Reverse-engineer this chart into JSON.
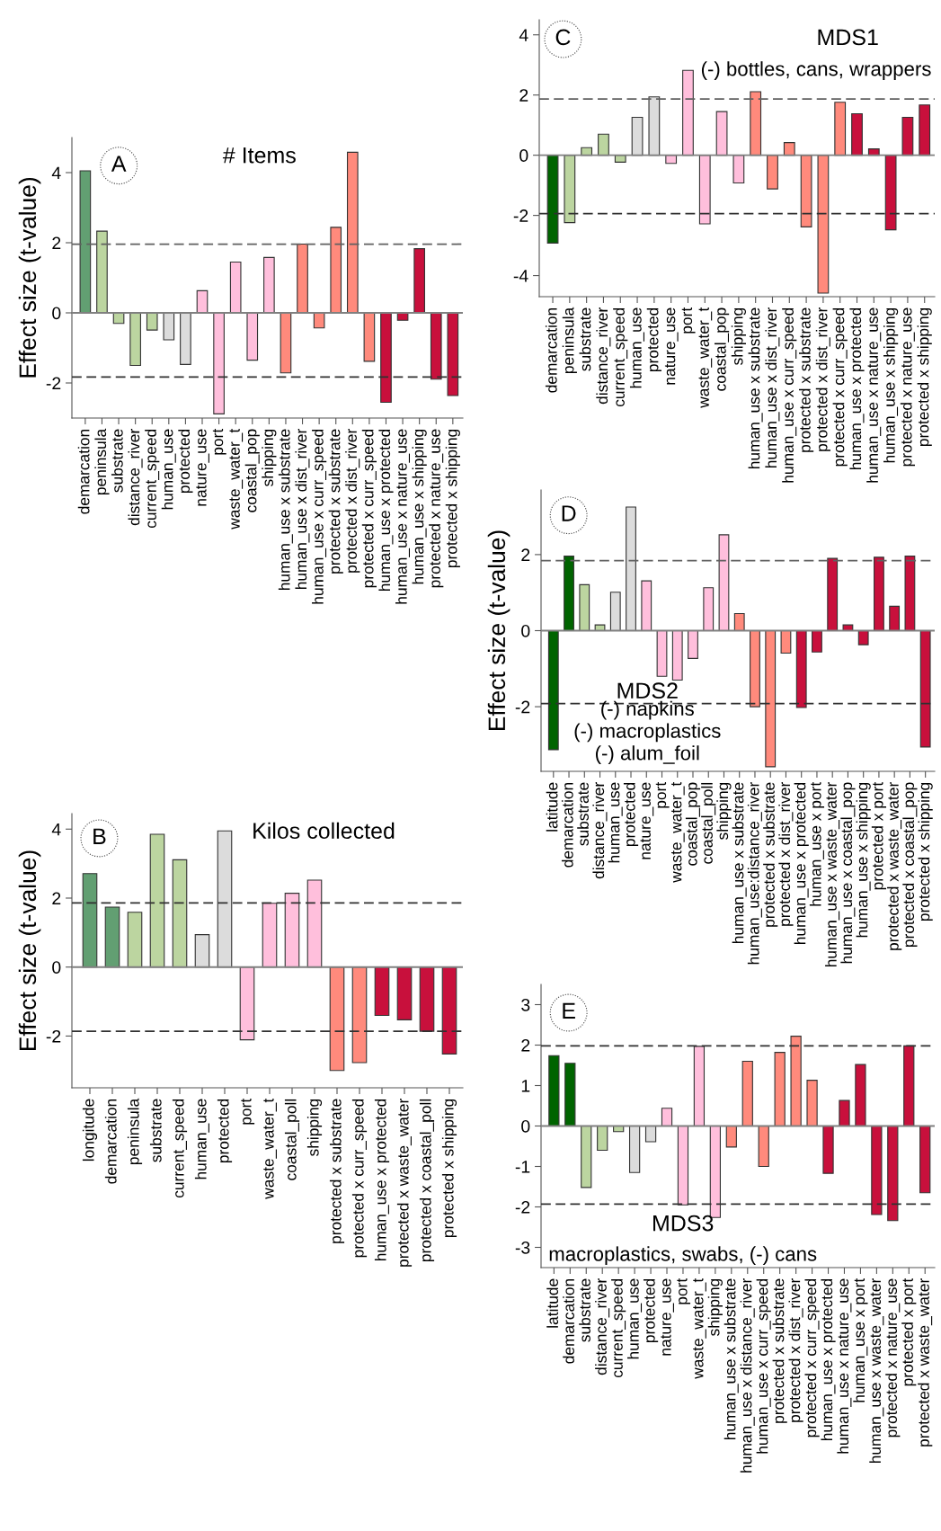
{
  "chart_data": [
    {
      "type": "bar",
      "title": "# Items",
      "ylabel": "Effect size (t-value)",
      "annotations": [
        "A"
      ],
      "categories": [
        "demarcation",
        "peninsula",
        "substrate",
        "distance_river",
        "current_speed",
        "human_use",
        "protected",
        "nature_use",
        "port",
        "waste_water_t",
        "coastal_pop",
        "shipping",
        "human_use x substrate",
        "human_use x dist_river",
        "human_use x curr_speed",
        "protected x substrate",
        "protected x dist_river",
        "protected x curr_speed",
        "human_use x protected",
        "human_use x nature_use",
        "human_use x shipping",
        "protected x nature_use",
        "protected x shipping"
      ],
      "values": [
        4.05,
        2.33,
        -0.3,
        -1.5,
        -0.49,
        -0.77,
        -1.47,
        0.63,
        -2.88,
        1.45,
        -1.35,
        1.58,
        -1.71,
        1.96,
        -0.43,
        2.44,
        4.58,
        -1.38,
        -2.55,
        -0.21,
        1.83,
        -1.89,
        -2.36
      ],
      "colors": [
        "#629f72",
        "#bcd5a0",
        "#bcd5a0",
        "#bcd5a0",
        "#bcd5a0",
        "#dcdcdc",
        "#dcdcdc",
        "#ffbfdc",
        "#ffbfdc",
        "#ffbfdc",
        "#ffbfdc",
        "#ffbfdc",
        "#ff8a7c",
        "#ff8a7c",
        "#ff8a7c",
        "#ff8a7c",
        "#ff8a7c",
        "#ff8a7c",
        "#c8103c",
        "#c8103c",
        "#c8103c",
        "#c8103c",
        "#c8103c"
      ],
      "ylim": [
        -3,
        5
      ],
      "yticks": [
        -2,
        0,
        2,
        4
      ],
      "ref_lines": [
        {
          "axis": "y",
          "value": 0,
          "color": "#808080",
          "line_style": "solid"
        },
        {
          "axis": "y",
          "value": 1.96,
          "color": "#606060",
          "line_style": "dashed"
        },
        {
          "axis": "y",
          "value": -1.83,
          "color": "#303030",
          "line_style": "dashed"
        }
      ]
    },
    {
      "type": "bar",
      "title": "MDS1",
      "subtitle": "(-) bottles, cans, wrappers",
      "annotations": [
        "C"
      ],
      "categories": [
        "demarcation",
        "peninsula",
        "substrate",
        "distance_river",
        "current_speed",
        "human_use",
        "protected",
        "nature_use",
        "port",
        "waste_water_t",
        "coastal_pop",
        "shipping",
        "human_use x substrate",
        "human_use x dist_river",
        "human_use x curr_speed",
        "protected x substrate",
        "protected x dist_river",
        "protected x curr_speed",
        "human_use x protected",
        "human_use x nature_use",
        "human_use x shipping",
        "protected x nature_use",
        "protected x shipping"
      ],
      "values": [
        -2.92,
        -2.24,
        0.25,
        0.7,
        -0.23,
        1.26,
        1.94,
        -0.27,
        2.82,
        -2.28,
        1.45,
        -0.92,
        2.11,
        -1.12,
        0.42,
        -2.38,
        -4.58,
        1.76,
        1.38,
        0.21,
        -2.48,
        1.26,
        1.67
      ],
      "colors": [
        "#006400",
        "#bcd5a0",
        "#bcd5a0",
        "#bcd5a0",
        "#bcd5a0",
        "#dcdcdc",
        "#dcdcdc",
        "#ffbfdc",
        "#ffbfdc",
        "#ffbfdc",
        "#ffbfdc",
        "#ffbfdc",
        "#ff8a7c",
        "#ff8a7c",
        "#ff8a7c",
        "#ff8a7c",
        "#ff8a7c",
        "#ff8a7c",
        "#c8103c",
        "#c8103c",
        "#c8103c",
        "#c8103c",
        "#c8103c"
      ],
      "ylim": [
        -4.7,
        4.5
      ],
      "yticks": [
        -4,
        -2,
        0,
        2,
        4
      ],
      "ref_lines": [
        {
          "axis": "y",
          "value": 0,
          "color": "#808080",
          "line_style": "solid"
        },
        {
          "axis": "y",
          "value": 1.87,
          "color": "#606060",
          "line_style": "dashed"
        },
        {
          "axis": "y",
          "value": -1.94,
          "color": "#303030",
          "line_style": "dashed"
        }
      ]
    },
    {
      "type": "bar",
      "title": "MDS2",
      "subtitle": "(-) napkins\n(-) macroplastics\n(-) alum_foil",
      "ylabel": "Effect size (t-value)",
      "annotations": [
        "D"
      ],
      "categories": [
        "latitude",
        "demarcation",
        "substrate",
        "distance_river",
        "human_use",
        "protected",
        "nature_use",
        "port",
        "waste_water_t",
        "coastal_pop",
        "coastal_poll",
        "shipping",
        "human_use x substrate",
        "human_use:distance_river",
        "protected x substrate",
        "protected x dist_river",
        "human_use x protected",
        "human_use x port",
        "human_use x waste_water",
        "human_use x coastal_pop",
        "human_use x shipping",
        "protected x port",
        "protected x waste_water",
        "protected x coastal_pop",
        "protected x shipping"
      ],
      "values": [
        -3.13,
        1.96,
        1.21,
        0.15,
        1.01,
        3.25,
        1.31,
        -1.2,
        -1.3,
        -0.73,
        1.13,
        2.52,
        0.45,
        -2.0,
        -3.58,
        -0.59,
        -2.02,
        -0.56,
        1.9,
        0.15,
        -0.37,
        1.93,
        0.64,
        1.96,
        -3.06
      ],
      "colors": [
        "#006400",
        "#006400",
        "#bcd5a0",
        "#bcd5a0",
        "#dcdcdc",
        "#dcdcdc",
        "#ffbfdc",
        "#ffbfdc",
        "#ffbfdc",
        "#ffbfdc",
        "#ffbfdc",
        "#ffbfdc",
        "#ff8a7c",
        "#ff8a7c",
        "#ff8a7c",
        "#ff8a7c",
        "#c8103c",
        "#c8103c",
        "#c8103c",
        "#c8103c",
        "#c8103c",
        "#c8103c",
        "#c8103c",
        "#c8103c",
        "#c8103c"
      ],
      "ylim": [
        -3.7,
        3.7
      ],
      "yticks": [
        -2,
        0,
        2
      ],
      "ref_lines": [
        {
          "axis": "y",
          "value": 0,
          "color": "#808080",
          "line_style": "solid"
        },
        {
          "axis": "y",
          "value": 1.84,
          "color": "#606060",
          "line_style": "dashed"
        },
        {
          "axis": "y",
          "value": -1.92,
          "color": "#303030",
          "line_style": "dashed"
        }
      ]
    },
    {
      "type": "bar",
      "title": "Kilos collected",
      "ylabel": "Effect size (t-value)",
      "annotations": [
        "B"
      ],
      "categories": [
        "longitude",
        "demarcation",
        "peninsula",
        "substrate",
        "current_speed",
        "human_use",
        "protected",
        "port",
        "waste_water_t",
        "coastal_poll",
        "shipping",
        "protected x substrate",
        "protected x curr_speed",
        "human_use x protected",
        "protected x waste_water",
        "protected x coastal_poll",
        "protected x shipping"
      ],
      "values": [
        2.71,
        1.74,
        1.59,
        3.85,
        3.11,
        0.94,
        3.95,
        -2.11,
        1.85,
        2.14,
        2.52,
        -3.0,
        -2.77,
        -1.4,
        -1.53,
        -1.86,
        -2.52
      ],
      "colors": [
        "#629f72",
        "#629f72",
        "#bcd5a0",
        "#bcd5a0",
        "#bcd5a0",
        "#dcdcdc",
        "#dcdcdc",
        "#ffbfdc",
        "#ffbfdc",
        "#ffbfdc",
        "#ffbfdc",
        "#ff8a7c",
        "#ff8a7c",
        "#c8103c",
        "#c8103c",
        "#c8103c",
        "#c8103c"
      ],
      "ylim": [
        -3.5,
        4.45
      ],
      "yticks": [
        -2,
        0,
        2,
        4
      ],
      "ref_lines": [
        {
          "axis": "y",
          "value": 0,
          "color": "#808080",
          "line_style": "solid"
        },
        {
          "axis": "y",
          "value": 1.86,
          "color": "#303030",
          "line_style": "dashed"
        },
        {
          "axis": "y",
          "value": -1.86,
          "color": "#303030",
          "line_style": "dashed"
        }
      ]
    },
    {
      "type": "bar",
      "title": "MDS3",
      "subtitle": "macroplastics, swabs, (-) cans",
      "annotations": [
        "E"
      ],
      "categories": [
        "latitude",
        "demarcation",
        "substrate",
        "distance_river",
        "current_speed",
        "human_use",
        "protected",
        "nature_use",
        "port",
        "waste_water_t",
        "shipping",
        "human_use x substrate",
        "human_use x distance_river",
        "human_use x curr_speed",
        "protected x substrate",
        "protected x dist_river",
        "protected x curr_speed",
        "human_use x protected",
        "human_use x nature_use",
        "human_use x port",
        "human_use x waste_water",
        "protected x nature_use",
        "protected x port",
        "protected x waste_water"
      ],
      "values": [
        1.74,
        1.55,
        -1.52,
        -0.6,
        -0.14,
        -1.15,
        -0.39,
        0.44,
        -1.95,
        1.97,
        -2.26,
        -0.52,
        1.6,
        -1.0,
        1.82,
        2.22,
        1.13,
        -1.17,
        0.63,
        1.52,
        -2.19,
        -2.34,
        1.98,
        -1.65
      ],
      "colors": [
        "#006400",
        "#006400",
        "#bcd5a0",
        "#bcd5a0",
        "#bcd5a0",
        "#dcdcdc",
        "#dcdcdc",
        "#ffbfdc",
        "#ffbfdc",
        "#ffbfdc",
        "#ffbfdc",
        "#ff8a7c",
        "#ff8a7c",
        "#ff8a7c",
        "#ff8a7c",
        "#ff8a7c",
        "#ff8a7c",
        "#c8103c",
        "#c8103c",
        "#c8103c",
        "#c8103c",
        "#c8103c",
        "#c8103c",
        "#c8103c"
      ],
      "ylim": [
        -3.5,
        3.5
      ],
      "yticks": [
        -3,
        -2,
        -1,
        0,
        1,
        2,
        3
      ],
      "ref_lines": [
        {
          "axis": "y",
          "value": 0,
          "color": "#808080",
          "line_style": "solid"
        },
        {
          "axis": "y",
          "value": 1.98,
          "color": "#303030",
          "line_style": "dashed"
        },
        {
          "axis": "y",
          "value": -1.93,
          "color": "#303030",
          "line_style": "dashed"
        }
      ]
    }
  ]
}
